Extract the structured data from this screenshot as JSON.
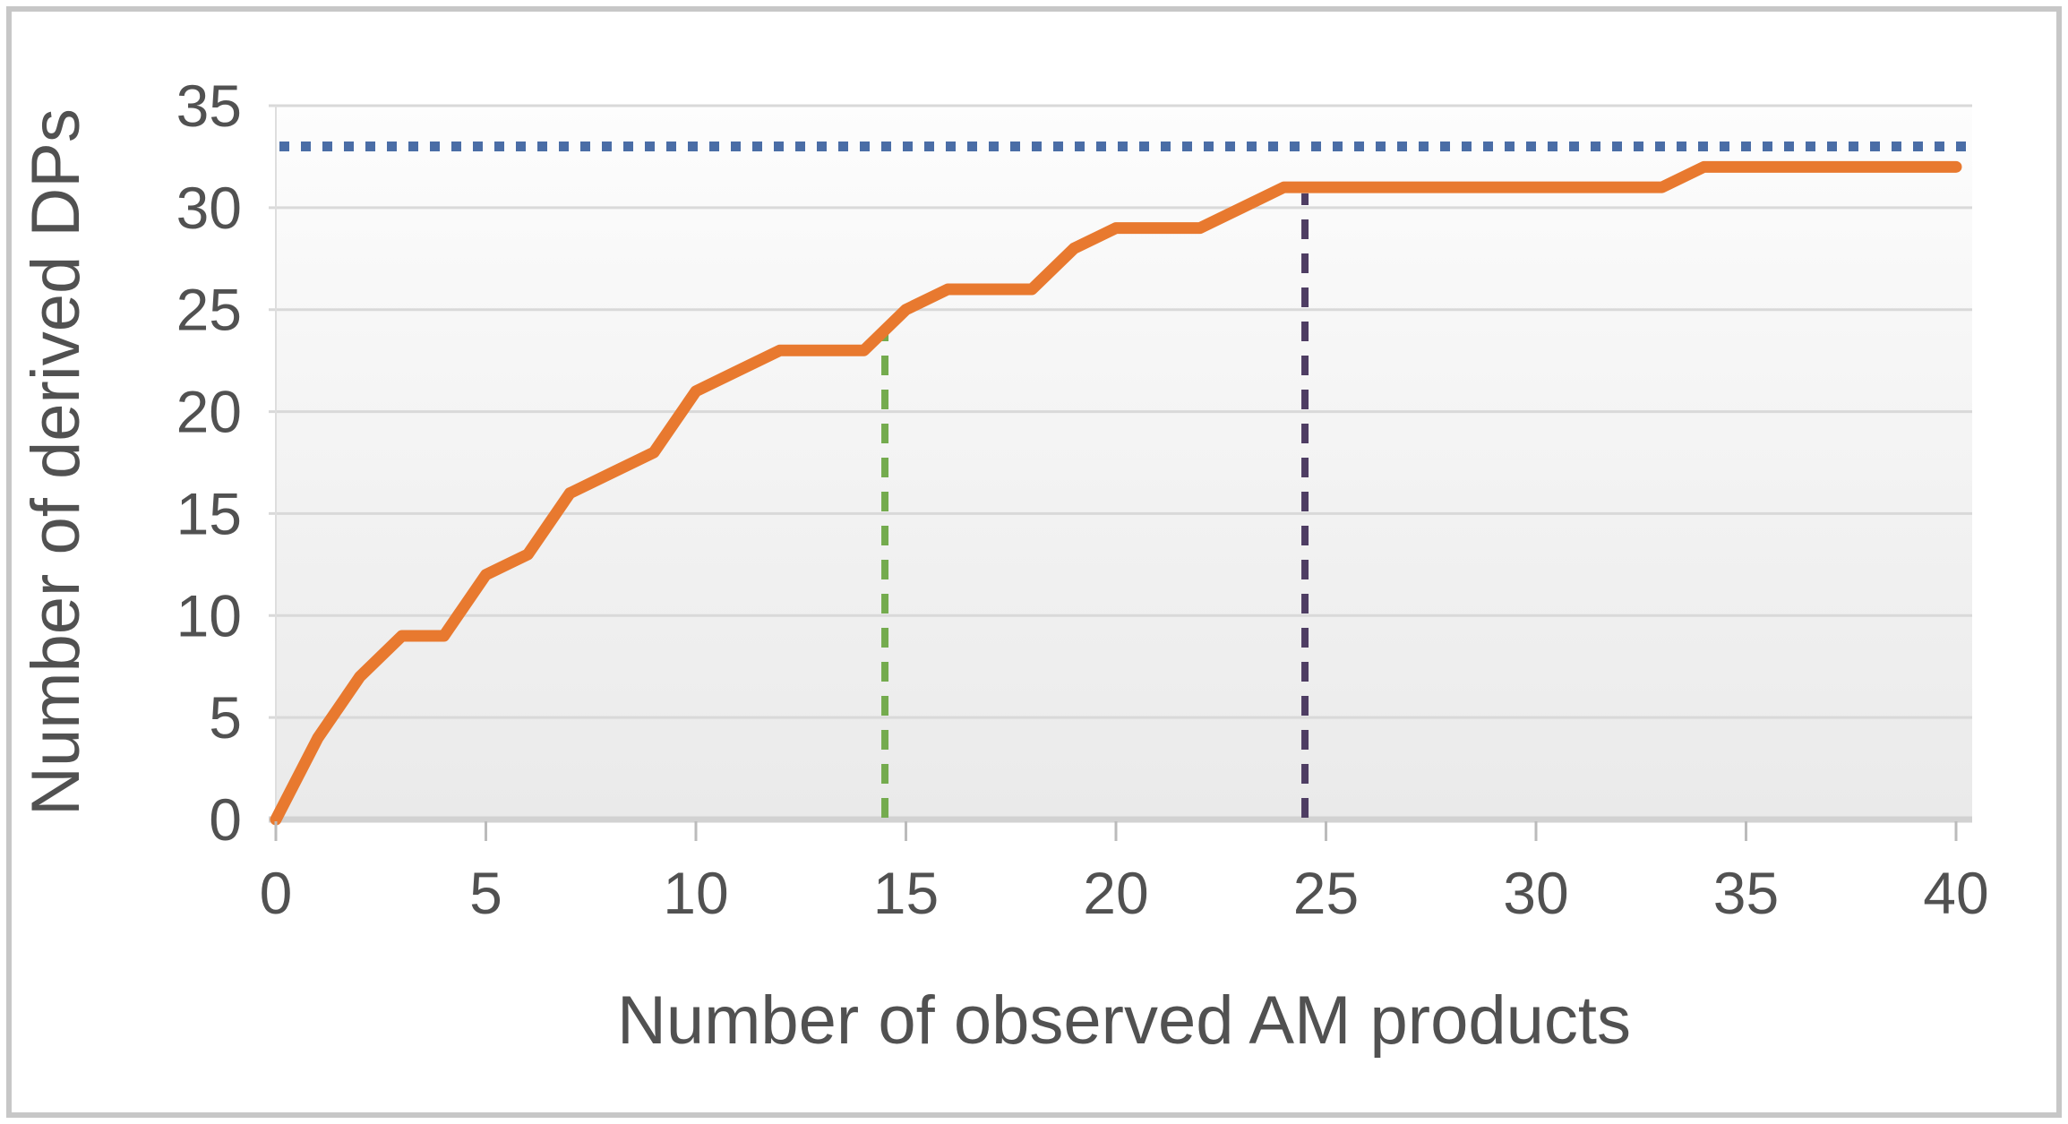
{
  "figure": {
    "background": "#ffffff",
    "border_color": "#c7c7c7",
    "plot_bg_top": "#fdfdfd",
    "plot_bg_bottom": "#eaeaea",
    "gridline_color": "#d9d9d9",
    "axisline_color": "#d2d2d2",
    "tick_color": "#bbbbbb",
    "label_color": "#515151"
  },
  "chart_data": {
    "type": "line",
    "title": "",
    "xlabel": "Number of observed AM products",
    "ylabel": "Number of derived DPs",
    "xlim": [
      0,
      40
    ],
    "ylim": [
      0,
      35
    ],
    "x_ticks": [
      0,
      5,
      10,
      15,
      20,
      25,
      30,
      35,
      40
    ],
    "y_ticks": [
      0,
      5,
      10,
      15,
      20,
      25,
      30,
      35
    ],
    "grid": "horizontal",
    "legend": "none",
    "series": [
      {
        "name": "derived-dps-accumulation",
        "type": "line",
        "style": "solid",
        "color": "#e8792f",
        "x": [
          0,
          1,
          2,
          3,
          4,
          5,
          6,
          7,
          8,
          9,
          10,
          11,
          12,
          13,
          14,
          15,
          16,
          17,
          18,
          19,
          20,
          21,
          22,
          23,
          24,
          25,
          26,
          27,
          28,
          29,
          30,
          31,
          32,
          33,
          34,
          35,
          36,
          37,
          38,
          39,
          40
        ],
        "y": [
          0,
          4,
          7,
          9,
          9,
          12,
          13,
          16,
          17,
          18,
          21,
          22,
          23,
          23,
          23,
          25,
          26,
          26,
          26,
          28,
          29,
          29,
          29,
          30,
          31,
          31,
          31,
          31,
          31,
          31,
          31,
          31,
          31,
          31,
          32,
          32,
          32,
          32,
          32,
          32,
          32
        ]
      },
      {
        "name": "asymptote-total-dps",
        "type": "hline",
        "style": "dotted",
        "color": "#4a6da6",
        "y": 33
      },
      {
        "name": "marker-observed-products",
        "type": "vline",
        "style": "dashed",
        "color": "#74ab4e",
        "x": 14.5,
        "y_top": 23.8
      },
      {
        "name": "marker-extrapolation-point",
        "type": "vline",
        "style": "dashed",
        "color": "#4e3d63",
        "x": 24.5,
        "y_top": 30.7
      }
    ]
  }
}
